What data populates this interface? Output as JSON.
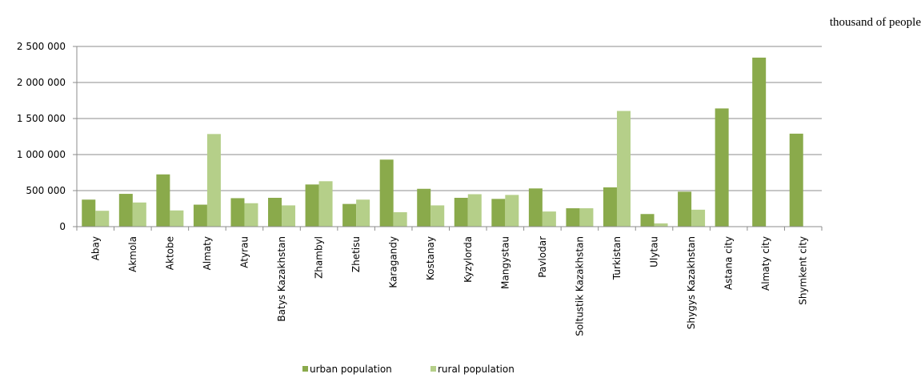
{
  "unit_note": "thousand of people",
  "chart_data": {
    "type": "bar",
    "title": "",
    "xlabel": "",
    "ylabel": "",
    "ylim": [
      0,
      2500000
    ],
    "yticks": [
      0,
      500000,
      1000000,
      1500000,
      2000000,
      2500000
    ],
    "ytick_labels": [
      "0",
      "500 000",
      "1 000 000",
      "1 500 000",
      "2 000 000",
      "2 500 000"
    ],
    "grid": true,
    "legend_position": "bottom",
    "categories": [
      "Abay",
      "Akmola",
      "Aktobe",
      "Almaty",
      "Atyrau",
      "Batys Kazakhstan",
      "Zhambyl",
      "Zhetisu",
      "Karagandy",
      "Kostanay",
      "Kyzylorda",
      "Mangystau",
      "Pavlodar",
      "Soltustik Kazakhstan",
      "Turkistan",
      "Ulytau",
      "Shygys Kazakhstan",
      "Astana city",
      "Almaty city",
      "Shymkent city"
    ],
    "series": [
      {
        "name": "urban population",
        "color": "#8aaa4b",
        "values": [
          375000,
          455000,
          725000,
          305000,
          395000,
          400000,
          585000,
          315000,
          930000,
          525000,
          400000,
          385000,
          530000,
          255000,
          545000,
          175000,
          485000,
          1640000,
          2345000,
          1290000
        ]
      },
      {
        "name": "rural population",
        "color": "#b5cf89",
        "values": [
          220000,
          335000,
          225000,
          1285000,
          325000,
          295000,
          630000,
          375000,
          200000,
          295000,
          450000,
          440000,
          210000,
          255000,
          1605000,
          45000,
          235000,
          0,
          0,
          0
        ]
      }
    ]
  }
}
